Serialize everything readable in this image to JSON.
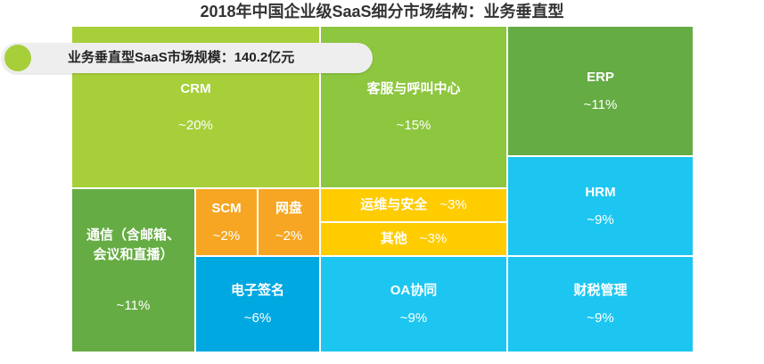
{
  "chart_data": {
    "type": "treemap",
    "title": "2018年中国企业级SaaS细分市场结构：业务垂直型",
    "annotation": "业务垂直型SaaS市场规模：140.2亿元",
    "cells": [
      {
        "label": "CRM",
        "value": "~20%",
        "share": 20,
        "color": "#a6cf3a"
      },
      {
        "label": "客服与呼叫中心",
        "value": "~15%",
        "share": 15,
        "color": "#8dc63f"
      },
      {
        "label": "ERP",
        "value": "~11%",
        "share": 11,
        "color": "#66ac44"
      },
      {
        "label": "通信（含邮箱、\n会议和直播）",
        "value": "~11%",
        "share": 11,
        "color": "#66ac44"
      },
      {
        "label": "SCM",
        "value": "~2%",
        "share": 2,
        "color": "#f6a623"
      },
      {
        "label": "网盘",
        "value": "~2%",
        "share": 2,
        "color": "#f6a623"
      },
      {
        "label": "运维与安全",
        "value": "~3%",
        "share": 3,
        "color": "#ffcc00"
      },
      {
        "label": "其他",
        "value": "~3%",
        "share": 3,
        "color": "#ffcc00"
      },
      {
        "label": "HRM",
        "value": "~9%",
        "share": 9,
        "color": "#1cc6f0"
      },
      {
        "label": "电子签名",
        "value": "~6%",
        "share": 6,
        "color": "#00a8e1"
      },
      {
        "label": "OA协同",
        "value": "~9%",
        "share": 9,
        "color": "#1cc6f0"
      },
      {
        "label": "财税管理",
        "value": "~9%",
        "share": 9,
        "color": "#1cc6f0"
      }
    ]
  }
}
